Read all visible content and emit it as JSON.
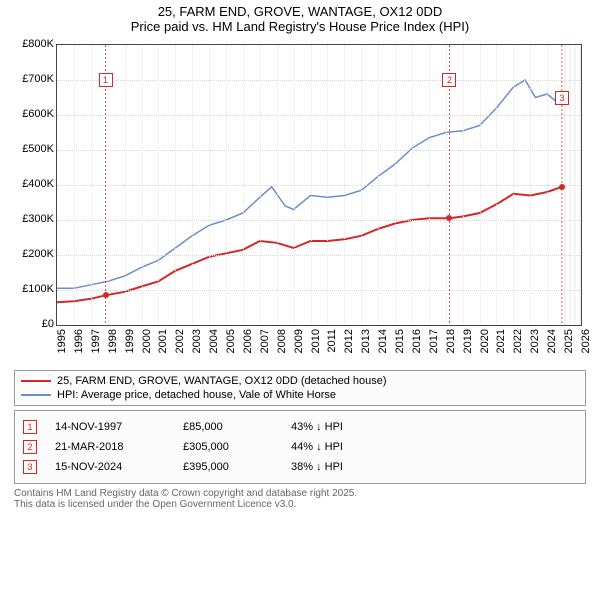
{
  "title_line1": "25, FARM END, GROVE, WANTAGE, OX12 0DD",
  "title_line2": "Price paid vs. HM Land Registry's House Price Index (HPI)",
  "chart": {
    "type": "line",
    "background_color": "#ffffff",
    "grid_color": "#d8d8d8",
    "axis_color": "#444444",
    "x": {
      "min": 1995,
      "max": 2026,
      "ticks": [
        1995,
        1996,
        1997,
        1998,
        1999,
        2000,
        2001,
        2002,
        2003,
        2004,
        2005,
        2006,
        2007,
        2008,
        2009,
        2010,
        2011,
        2012,
        2013,
        2014,
        2015,
        2016,
        2017,
        2018,
        2019,
        2020,
        2021,
        2022,
        2023,
        2024,
        2025,
        2026
      ]
    },
    "y": {
      "min": 0,
      "max": 800000,
      "ticks": [
        0,
        100000,
        200000,
        300000,
        400000,
        500000,
        600000,
        700000,
        800000
      ],
      "labels": [
        "£0",
        "£100K",
        "£200K",
        "£300K",
        "£400K",
        "£500K",
        "£600K",
        "£700K",
        "£800K"
      ]
    },
    "shaded_from": 2025,
    "series": [
      {
        "name": "price_paid",
        "color": "#d62728",
        "width": 2,
        "points": [
          [
            1995,
            65000
          ],
          [
            1996,
            68000
          ],
          [
            1997,
            75000
          ],
          [
            1997.87,
            85000
          ],
          [
            1999,
            95000
          ],
          [
            2000,
            110000
          ],
          [
            2001,
            125000
          ],
          [
            2002,
            155000
          ],
          [
            2003,
            175000
          ],
          [
            2004,
            195000
          ],
          [
            2005,
            205000
          ],
          [
            2006,
            215000
          ],
          [
            2007,
            240000
          ],
          [
            2008,
            235000
          ],
          [
            2009,
            220000
          ],
          [
            2010,
            240000
          ],
          [
            2011,
            240000
          ],
          [
            2012,
            245000
          ],
          [
            2013,
            255000
          ],
          [
            2014,
            275000
          ],
          [
            2015,
            290000
          ],
          [
            2016,
            300000
          ],
          [
            2017,
            305000
          ],
          [
            2018.22,
            305000
          ],
          [
            2019,
            310000
          ],
          [
            2020,
            320000
          ],
          [
            2021,
            345000
          ],
          [
            2022,
            375000
          ],
          [
            2023,
            370000
          ],
          [
            2024,
            380000
          ],
          [
            2024.87,
            395000
          ]
        ]
      },
      {
        "name": "hpi",
        "color": "#6b8fc9",
        "width": 1.5,
        "points": [
          [
            1995,
            105000
          ],
          [
            1996,
            105000
          ],
          [
            1997,
            115000
          ],
          [
            1998,
            125000
          ],
          [
            1999,
            140000
          ],
          [
            2000,
            165000
          ],
          [
            2001,
            185000
          ],
          [
            2002,
            220000
          ],
          [
            2003,
            255000
          ],
          [
            2004,
            285000
          ],
          [
            2005,
            300000
          ],
          [
            2006,
            320000
          ],
          [
            2007,
            365000
          ],
          [
            2007.7,
            395000
          ],
          [
            2008.5,
            340000
          ],
          [
            2009,
            330000
          ],
          [
            2010,
            370000
          ],
          [
            2011,
            365000
          ],
          [
            2012,
            370000
          ],
          [
            2013,
            385000
          ],
          [
            2014,
            425000
          ],
          [
            2015,
            460000
          ],
          [
            2016,
            505000
          ],
          [
            2017,
            535000
          ],
          [
            2018,
            550000
          ],
          [
            2019,
            555000
          ],
          [
            2020,
            570000
          ],
          [
            2021,
            620000
          ],
          [
            2022,
            680000
          ],
          [
            2022.7,
            700000
          ],
          [
            2023.3,
            650000
          ],
          [
            2024,
            660000
          ],
          [
            2024.5,
            640000
          ],
          [
            2025,
            660000
          ]
        ]
      }
    ],
    "markers": [
      {
        "n": "1",
        "x": 1997.87,
        "y": 85000,
        "label_y": 700000
      },
      {
        "n": "2",
        "x": 2018.22,
        "y": 305000,
        "label_y": 700000
      },
      {
        "n": "3",
        "x": 2024.87,
        "y": 395000,
        "label_y": 650000
      }
    ]
  },
  "legend": {
    "items": [
      {
        "color": "#d62728",
        "label": "25, FARM END, GROVE, WANTAGE, OX12 0DD (detached house)"
      },
      {
        "color": "#6b8fc9",
        "label": "HPI: Average price, detached house, Vale of White Horse"
      }
    ]
  },
  "transactions": [
    {
      "n": "1",
      "date": "14-NOV-1997",
      "price": "£85,000",
      "hpi": "43% ↓ HPI"
    },
    {
      "n": "2",
      "date": "21-MAR-2018",
      "price": "£305,000",
      "hpi": "44% ↓ HPI"
    },
    {
      "n": "3",
      "date": "15-NOV-2024",
      "price": "£395,000",
      "hpi": "38% ↓ HPI"
    }
  ],
  "footer_line1": "Contains HM Land Registry data © Crown copyright and database right 2025.",
  "footer_line2": "This data is licensed under the Open Government Licence v3.0."
}
